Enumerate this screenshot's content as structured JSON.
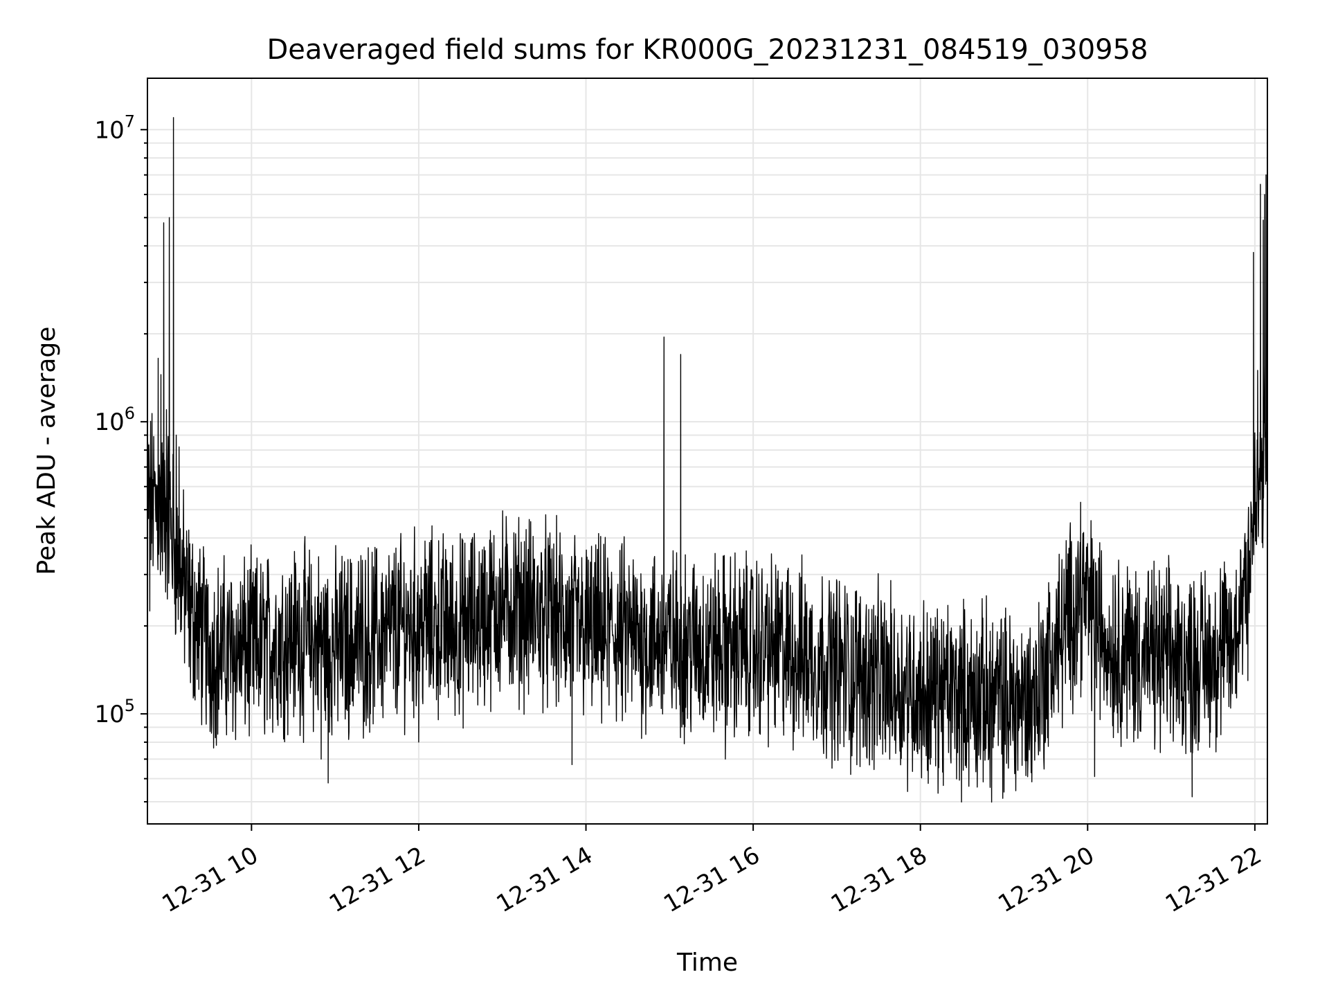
{
  "chart_data": {
    "type": "line",
    "title": "Deaveraged field sums for KR000G_20231231_084519_030958",
    "xlabel": "Time",
    "ylabel": "Peak ADU - average",
    "yscale": "log",
    "ylim": [
      42000,
      15000000
    ],
    "xlim": [
      "2023-12-31 08:45:19",
      "2023-12-31 22:09:00"
    ],
    "grid": true,
    "x_ticks": [
      {
        "time": "2023-12-31 10:00",
        "label": "12-31 10"
      },
      {
        "time": "2023-12-31 12:00",
        "label": "12-31 12"
      },
      {
        "time": "2023-12-31 14:00",
        "label": "12-31 14"
      },
      {
        "time": "2023-12-31 16:00",
        "label": "12-31 16"
      },
      {
        "time": "2023-12-31 18:00",
        "label": "12-31 18"
      },
      {
        "time": "2023-12-31 20:00",
        "label": "12-31 20"
      },
      {
        "time": "2023-12-31 22:00",
        "label": "12-31 22"
      }
    ],
    "y_ticks": [
      {
        "value": 100000,
        "base": "10",
        "exp": "5"
      },
      {
        "value": 1000000,
        "base": "10",
        "exp": "6"
      },
      {
        "value": 10000000,
        "base": "10",
        "exp": "7"
      }
    ],
    "series": [
      {
        "color": "#000000",
        "baseline": [
          [
            "2023-12-31 08:45",
            550000
          ],
          [
            "2023-12-31 09:00",
            480000
          ],
          [
            "2023-12-31 09:15",
            230000
          ],
          [
            "2023-12-31 09:30",
            165000
          ],
          [
            "2023-12-31 10:00",
            165000
          ],
          [
            "2023-12-31 10:30",
            185000
          ],
          [
            "2023-12-31 11:00",
            170000
          ],
          [
            "2023-12-31 11:30",
            185000
          ],
          [
            "2023-12-31 12:00",
            205000
          ],
          [
            "2023-12-31 12:30",
            195000
          ],
          [
            "2023-12-31 13:00",
            235000
          ],
          [
            "2023-12-31 13:30",
            220000
          ],
          [
            "2023-12-31 14:00",
            190000
          ],
          [
            "2023-12-31 14:30",
            185000
          ],
          [
            "2023-12-31 15:00",
            175000
          ],
          [
            "2023-12-31 15:30",
            170000
          ],
          [
            "2023-12-31 16:00",
            170000
          ],
          [
            "2023-12-31 16:30",
            160000
          ],
          [
            "2023-12-31 17:00",
            145000
          ],
          [
            "2023-12-31 17:30",
            132000
          ],
          [
            "2023-12-31 18:00",
            120000
          ],
          [
            "2023-12-31 18:30",
            115000
          ],
          [
            "2023-12-31 19:00",
            112000
          ],
          [
            "2023-12-31 19:20",
            110000
          ],
          [
            "2023-12-31 19:40",
            180000
          ],
          [
            "2023-12-31 19:55",
            260000
          ],
          [
            "2023-12-31 20:15",
            175000
          ],
          [
            "2023-12-31 20:45",
            155000
          ],
          [
            "2023-12-31 21:15",
            150000
          ],
          [
            "2023-12-31 21:45",
            170000
          ],
          [
            "2023-12-31 21:55",
            350000
          ],
          [
            "2023-12-31 22:05",
            650000
          ],
          [
            "2023-12-31 22:09",
            850000
          ]
        ],
        "spikes": [
          [
            "2023-12-31 08:53",
            1650000
          ],
          [
            "2023-12-31 08:55",
            1450000
          ],
          [
            "2023-12-31 08:57",
            4800000
          ],
          [
            "2023-12-31 08:59",
            1100000
          ],
          [
            "2023-12-31 09:01",
            5000000
          ],
          [
            "2023-12-31 09:04",
            11000000
          ],
          [
            "2023-12-31 09:06",
            900000
          ],
          [
            "2023-12-31 09:08",
            820000
          ],
          [
            "2023-12-31 14:56",
            1950000
          ],
          [
            "2023-12-31 15:08",
            1700000
          ],
          [
            "2023-12-31 19:55",
            530000
          ],
          [
            "2023-12-31 21:59",
            3800000
          ],
          [
            "2023-12-31 22:02",
            1500000
          ],
          [
            "2023-12-31 22:04",
            6500000
          ],
          [
            "2023-12-31 22:06",
            4900000
          ],
          [
            "2023-12-31 22:07",
            6000000
          ],
          [
            "2023-12-31 22:08",
            7000000
          ]
        ],
        "dips": [
          [
            "2023-12-31 08:47",
            225000
          ],
          [
            "2023-12-31 10:50",
            70000
          ],
          [
            "2023-12-31 10:55",
            58000
          ],
          [
            "2023-12-31 12:00",
            80000
          ],
          [
            "2023-12-31 13:50",
            67000
          ],
          [
            "2023-12-31 15:40",
            70000
          ],
          [
            "2023-12-31 17:10",
            62000
          ],
          [
            "2023-12-31 18:05",
            64000
          ],
          [
            "2023-12-31 18:50",
            56000
          ],
          [
            "2023-12-31 19:00",
            54000
          ],
          [
            "2023-12-31 20:05",
            61000
          ],
          [
            "2023-12-31 21:15",
            52000
          ],
          [
            "2023-12-31 21:55",
            130000
          ]
        ]
      }
    ]
  }
}
